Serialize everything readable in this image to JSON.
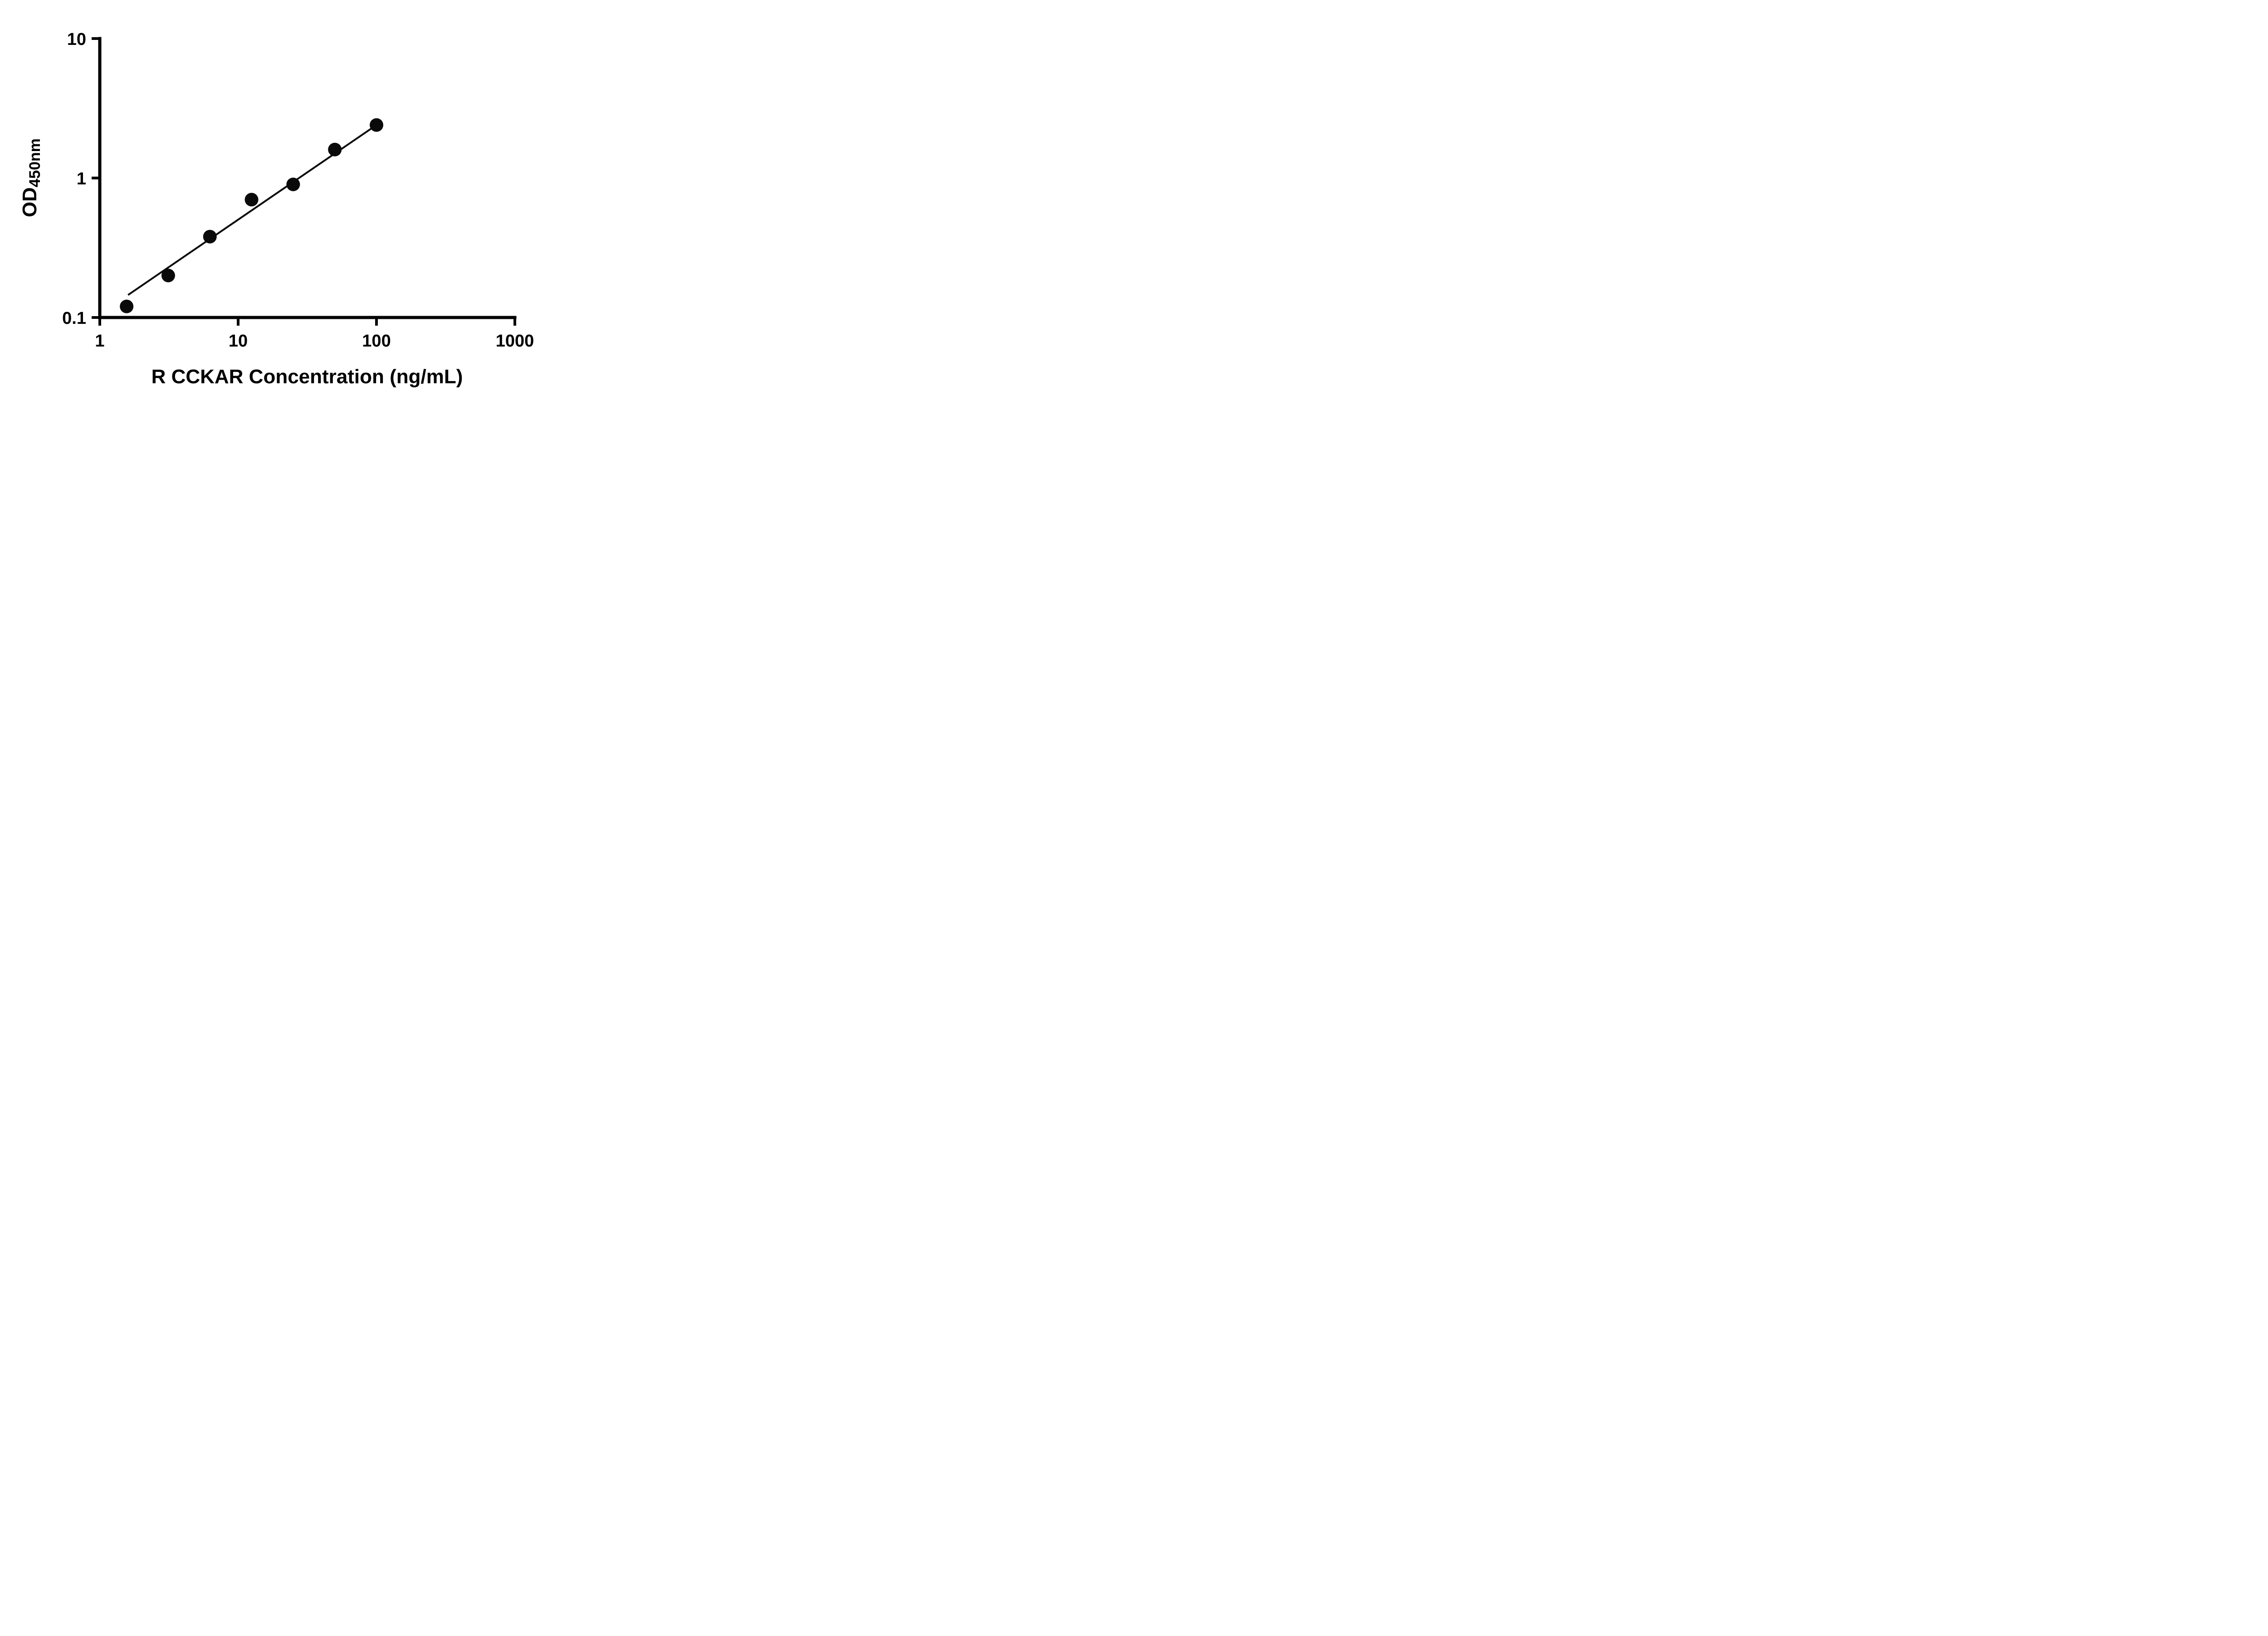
{
  "chart_data": {
    "type": "scatter",
    "title": "",
    "xlabel": "R CCKAR Concentration (ng/mL)",
    "ylabel_main": "OD",
    "ylabel_sub": "450nm",
    "x_scale": "log",
    "y_scale": "log",
    "xlim": [
      1,
      1000
    ],
    "ylim": [
      0.1,
      10
    ],
    "x_ticks": [
      1,
      10,
      100,
      1000
    ],
    "x_tick_labels": [
      "1",
      "10",
      "100",
      "1000"
    ],
    "y_ticks": [
      0.1,
      1,
      10
    ],
    "y_tick_labels": [
      "0.1",
      "1",
      "10"
    ],
    "grid": false,
    "legend": false,
    "marker_color": "#0a0a0a",
    "line_color": "#0a0a0a",
    "points": [
      {
        "x": 1.563,
        "y": 0.12
      },
      {
        "x": 3.125,
        "y": 0.2
      },
      {
        "x": 6.25,
        "y": 0.38
      },
      {
        "x": 12.5,
        "y": 0.7
      },
      {
        "x": 25,
        "y": 0.9
      },
      {
        "x": 50,
        "y": 1.6
      },
      {
        "x": 100,
        "y": 2.4
      }
    ],
    "trend_line": {
      "x1": 1.6,
      "y1": 0.145,
      "x2": 100,
      "y2": 2.4
    }
  }
}
